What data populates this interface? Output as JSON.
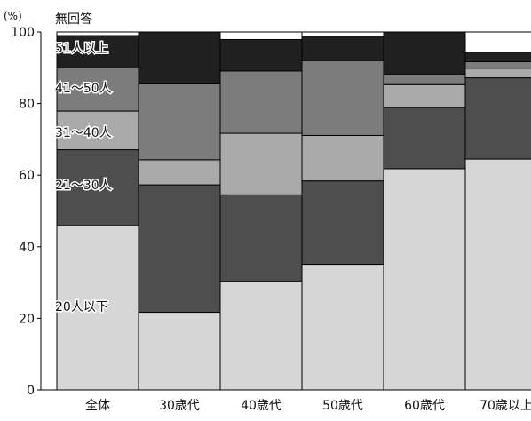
{
  "chart_data": {
    "type": "bar",
    "stacked": true,
    "ylim": [
      0,
      100
    ],
    "yticks": [
      0,
      20,
      40,
      60,
      80,
      100
    ],
    "yunit": "(%)",
    "grid": false,
    "connector_lines": true,
    "categories": [
      "全体",
      "30歳代",
      "40歳代",
      "50歳代",
      "60歳代",
      "70歳以上"
    ],
    "series": [
      {
        "name": "20人以下",
        "color": "#d6d6d6",
        "values": [
          45.9,
          21.7,
          30.3,
          35.1,
          61.8,
          64.5
        ]
      },
      {
        "name": "21〜30人",
        "color": "#4e4e4e",
        "values": [
          21.2,
          35.6,
          24.2,
          23.3,
          17.1,
          22.7
        ]
      },
      {
        "name": "31〜40人",
        "color": "#aaaaaa",
        "values": [
          10.8,
          7.0,
          17.2,
          12.7,
          6.4,
          2.7
        ]
      },
      {
        "name": "41〜50人",
        "color": "#7c7c7c",
        "values": [
          12.1,
          21.2,
          17.4,
          20.9,
          2.8,
          1.8
        ]
      },
      {
        "name": "51人以上",
        "color": "#202020",
        "values": [
          9.0,
          14.5,
          8.8,
          6.8,
          11.9,
          2.7
        ]
      },
      {
        "name": "無回答",
        "color": "#ffffff",
        "values": [
          1.0,
          0.0,
          2.1,
          1.2,
          0.0,
          5.6
        ]
      }
    ]
  }
}
